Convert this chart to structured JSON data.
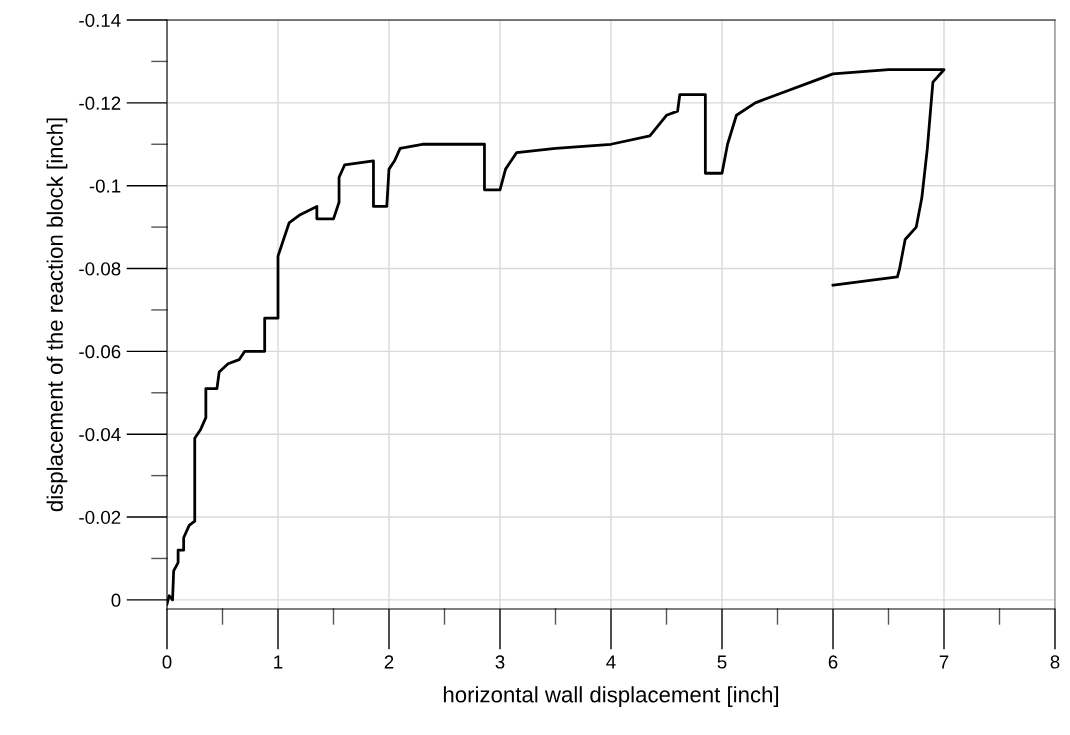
{
  "chart_data": {
    "type": "line",
    "xlabel": "horizontal wall displacement [inch]",
    "ylabel": "displacement of the reaction block [inch]",
    "xlim": [
      0,
      8
    ],
    "ylim": [
      0.0022,
      -0.14
    ],
    "xticks": [
      0,
      {
        "value": 0.5,
        "label": null
      },
      1,
      {
        "value": 1.5,
        "label": null
      },
      2,
      {
        "value": 2.5,
        "label": null
      },
      3,
      {
        "value": 3.5,
        "label": null
      },
      4,
      {
        "value": 4.5,
        "label": null
      },
      5,
      {
        "value": 5.5,
        "label": null
      },
      6,
      {
        "value": 6.5,
        "label": null
      },
      7,
      {
        "value": 7.5,
        "label": null
      },
      8
    ],
    "yticks": [
      {
        "value": -0.14,
        "label": "-0.14"
      },
      {
        "value": -0.13,
        "label": null
      },
      {
        "value": -0.12,
        "label": "-0.12"
      },
      {
        "value": -0.11,
        "label": null
      },
      {
        "value": -0.1,
        "label": "-0.1"
      },
      {
        "value": -0.09,
        "label": null
      },
      {
        "value": -0.08,
        "label": "-0.08"
      },
      {
        "value": -0.07,
        "label": null
      },
      {
        "value": -0.06,
        "label": "-0.06"
      },
      {
        "value": -0.05,
        "label": null
      },
      {
        "value": -0.04,
        "label": "-0.04"
      },
      {
        "value": -0.03,
        "label": null
      },
      {
        "value": -0.02,
        "label": "-0.02"
      },
      {
        "value": -0.01,
        "label": null
      },
      0
    ],
    "grid": true,
    "marker": "none",
    "line_style": "solid",
    "series": [
      {
        "color": "#000000",
        "x": [
          0,
          0.02,
          0.05,
          0.06,
          0.1,
          0.1,
          0.15,
          0.15,
          0.2,
          0.25,
          0.25,
          0.3,
          0.35,
          0.35,
          0.45,
          0.47,
          0.55,
          0.65,
          0.7,
          0.88,
          0.88,
          1.0,
          1.0,
          1.05,
          1.1,
          1.2,
          1.35,
          1.35,
          1.5,
          1.55,
          1.55,
          1.6,
          1.86,
          1.86,
          1.98,
          2.0,
          2.05,
          2.1,
          2.3,
          2.86,
          2.86,
          3.0,
          3.05,
          3.15,
          3.5,
          4.0,
          4.35,
          4.5,
          4.6,
          4.62,
          4.85,
          4.85,
          5.0,
          5.05,
          5.13,
          5.3,
          5.5,
          5.8,
          6.0,
          6.5,
          7.0,
          6.9,
          6.85,
          6.8,
          6.75,
          6.65,
          6.6,
          6.58,
          6.3,
          6.0
        ],
        "values": [
          0.001,
          -0.001,
          0,
          -0.007,
          -0.009,
          -0.012,
          -0.012,
          -0.015,
          -0.018,
          -0.019,
          -0.039,
          -0.041,
          -0.044,
          -0.051,
          -0.051,
          -0.055,
          -0.057,
          -0.058,
          -0.06,
          -0.06,
          -0.068,
          -0.068,
          -0.083,
          -0.087,
          -0.091,
          -0.093,
          -0.095,
          -0.092,
          -0.092,
          -0.096,
          -0.102,
          -0.105,
          -0.106,
          -0.095,
          -0.095,
          -0.104,
          -0.106,
          -0.109,
          -0.11,
          -0.11,
          -0.099,
          -0.099,
          -0.104,
          -0.108,
          -0.109,
          -0.11,
          -0.112,
          -0.117,
          -0.118,
          -0.122,
          -0.122,
          -0.103,
          -0.103,
          -0.11,
          -0.117,
          -0.12,
          -0.122,
          -0.125,
          -0.127,
          -0.128,
          -0.128,
          -0.125,
          -0.109,
          -0.097,
          -0.09,
          -0.087,
          -0.08,
          -0.078,
          -0.077,
          -0.076
        ]
      }
    ]
  }
}
